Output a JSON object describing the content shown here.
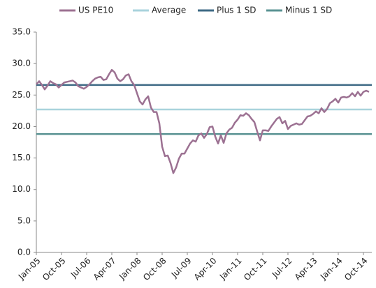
{
  "chart_data": {
    "type": "line",
    "categories": [
      "Jan-05",
      null,
      null,
      null,
      null,
      null,
      null,
      null,
      null,
      "Oct-05",
      null,
      null,
      null,
      null,
      null,
      null,
      null,
      null,
      "Jul-06",
      null,
      null,
      null,
      null,
      null,
      null,
      null,
      null,
      "Apr-07",
      null,
      null,
      null,
      null,
      null,
      null,
      null,
      null,
      "Jan-08",
      null,
      null,
      null,
      null,
      null,
      null,
      null,
      null,
      "Oct-08",
      null,
      null,
      null,
      null,
      null,
      null,
      null,
      null,
      "Jul-09",
      null,
      null,
      null,
      null,
      null,
      null,
      null,
      null,
      "Apr-10",
      null,
      null,
      null,
      null,
      null,
      null,
      null,
      null,
      "Jan-11",
      null,
      null,
      null,
      null,
      null,
      null,
      null,
      null,
      "Oct-11",
      null,
      null,
      null,
      null,
      null,
      null,
      null,
      null,
      "Jul-12",
      null,
      null,
      null,
      null,
      null,
      null,
      null,
      null,
      "Apr-13",
      null,
      null,
      null,
      null,
      null,
      null,
      null,
      null,
      "Jan-14",
      null,
      null,
      null,
      null,
      null,
      null,
      null,
      null,
      "Oct-14",
      null,
      null
    ],
    "series": [
      {
        "name": "US PE10",
        "color": "#9c7192",
        "values": [
          26.7,
          27.2,
          26.6,
          25.9,
          26.5,
          27.2,
          26.9,
          26.7,
          26.2,
          26.6,
          27.0,
          27.1,
          27.2,
          27.3,
          27.0,
          26.4,
          26.2,
          26.0,
          26.3,
          26.7,
          27.2,
          27.6,
          27.8,
          27.9,
          27.4,
          27.5,
          28.3,
          29.0,
          28.6,
          27.6,
          27.2,
          27.5,
          28.1,
          28.3,
          27.2,
          26.6,
          25.3,
          24.0,
          23.5,
          24.3,
          24.8,
          23.0,
          22.3,
          22.3,
          20.5,
          16.8,
          15.3,
          15.4,
          14.2,
          12.6,
          13.5,
          14.9,
          15.7,
          15.7,
          16.5,
          17.3,
          17.8,
          17.6,
          18.6,
          18.9,
          18.2,
          18.8,
          19.9,
          20.0,
          18.4,
          17.3,
          18.6,
          17.4,
          18.9,
          19.5,
          19.8,
          20.6,
          21.1,
          21.8,
          21.7,
          22.1,
          21.8,
          21.2,
          20.7,
          19.2,
          17.8,
          19.4,
          19.4,
          19.3,
          20.0,
          20.6,
          21.2,
          21.5,
          20.5,
          20.9,
          19.6,
          20.1,
          20.3,
          20.5,
          20.3,
          20.4,
          21.0,
          21.6,
          21.7,
          22.0,
          22.4,
          22.1,
          22.9,
          22.3,
          22.8,
          23.7,
          24.0,
          24.4,
          23.8,
          24.6,
          24.7,
          24.6,
          24.8,
          25.3,
          24.8,
          25.5,
          24.9,
          25.5,
          25.7,
          25.5
        ]
      }
    ],
    "reference_lines": [
      {
        "name": "Average",
        "color": "#a9d3dc",
        "value": 22.7
      },
      {
        "name": "Plus 1 SD",
        "color": "#3e6a85",
        "value": 26.6
      },
      {
        "name": "Minus 1 SD",
        "color": "#5a9393",
        "value": 18.8
      }
    ],
    "ylim": [
      0,
      35
    ],
    "yticks": [
      {
        "value": 0,
        "label": "0.0"
      },
      {
        "value": 5,
        "label": "5.0"
      },
      {
        "value": 10,
        "label": "10.0"
      },
      {
        "value": 15,
        "label": "15.0"
      },
      {
        "value": 20,
        "label": "20.0"
      },
      {
        "value": 25,
        "label": "25.0"
      },
      {
        "value": 30,
        "label": "30.0"
      },
      {
        "value": 35,
        "label": "35.0"
      }
    ],
    "grid": false,
    "legend": "top"
  }
}
